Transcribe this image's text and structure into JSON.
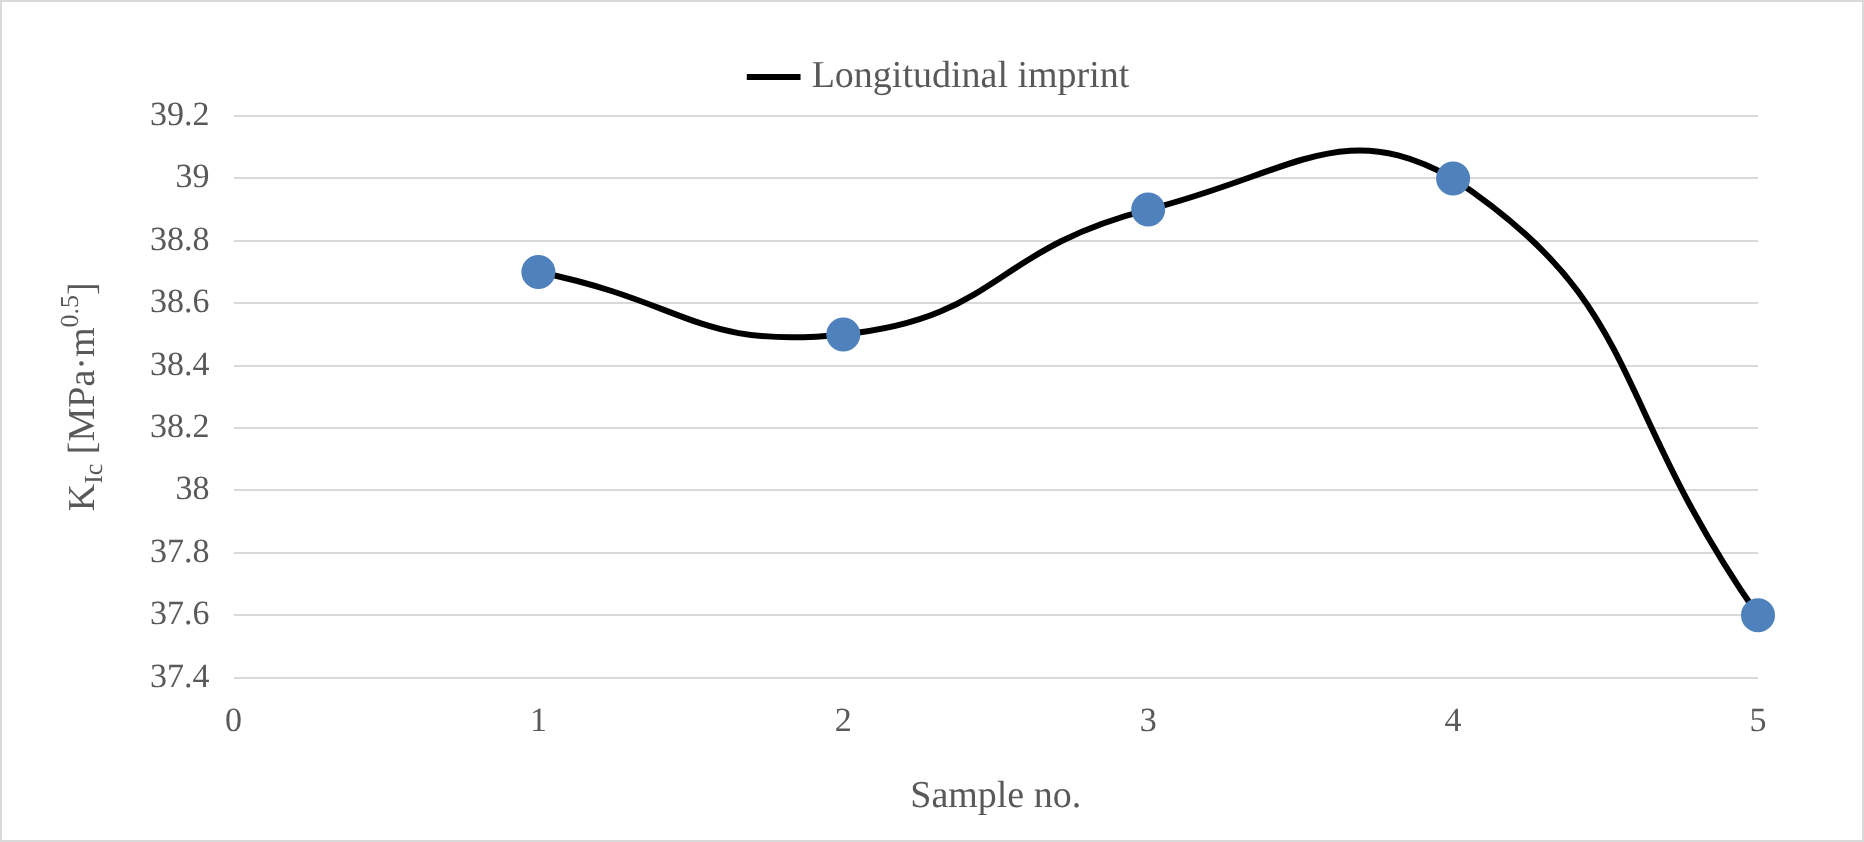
{
  "chart_data": {
    "type": "line",
    "xlabel": "Sample no.",
    "ylabel": "K$_{Ic}$ [MPa·m$^{0.5}$]",
    "x": [
      1,
      2,
      3,
      4,
      5
    ],
    "series": [
      {
        "name": "Longitudinal imprint",
        "color": "#000000",
        "colors": [
          "#4f81bd",
          "#4f81bd",
          "#4f81bd",
          "#4f81bd",
          "#4f81bd"
        ],
        "values": [
          38.7,
          38.5,
          38.9,
          39.0,
          37.6
        ]
      }
    ],
    "xlim": [
      0,
      5
    ],
    "xticks": [
      0,
      1,
      2,
      3,
      4,
      5
    ],
    "ylim": [
      37.4,
      39.2
    ],
    "yticks": [
      37.4,
      37.6,
      37.8,
      38,
      38.2,
      38.4,
      38.6,
      38.8,
      39,
      39.2
    ],
    "grid": "y",
    "legend": "top",
    "marker": "circle",
    "line_style": "solid"
  }
}
